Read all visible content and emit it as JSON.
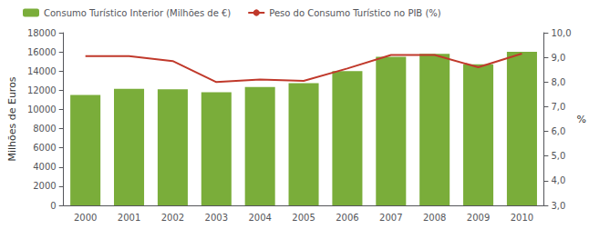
{
  "chart_data": {
    "type": "bar",
    "categories": [
      "2000",
      "2001",
      "2002",
      "2003",
      "2004",
      "2005",
      "2006",
      "2007",
      "2008",
      "2009",
      "2010"
    ],
    "series": [
      {
        "name": "Consumo Turístico Interior (Milhões de €)",
        "type": "bar",
        "color": "#7aad3a",
        "values": [
          11500,
          12150,
          12100,
          11800,
          12350,
          12750,
          14000,
          15500,
          15800,
          14700,
          16000
        ]
      },
      {
        "name": "Peso do Consumo Turístico no PIB (%)",
        "type": "line",
        "color": "#c0392b",
        "axis": "y2",
        "values": [
          9.05,
          9.05,
          8.85,
          8.0,
          8.1,
          8.05,
          8.55,
          9.1,
          9.1,
          8.6,
          9.15
        ]
      }
    ],
    "ylabel": "Milhões de Euros",
    "y2label": "%",
    "ylim": [
      0,
      18000
    ],
    "yticks": [
      0,
      2000,
      4000,
      6000,
      8000,
      10000,
      12000,
      14000,
      16000,
      18000
    ],
    "y2lim": [
      3.0,
      10.0
    ],
    "y2ticks": [
      {
        "value": 3.0,
        "label": "3,0"
      },
      {
        "value": 4.0,
        "label": "4,0"
      },
      {
        "value": 5.0,
        "label": "5,0"
      },
      {
        "value": 6.0,
        "label": "6,0"
      },
      {
        "value": 7.0,
        "label": "7,0"
      },
      {
        "value": 8.0,
        "label": "8,0"
      },
      {
        "value": 9.0,
        "label": "9,0"
      },
      {
        "value": 10.0,
        "label": "10,0"
      }
    ],
    "legend": "upper left",
    "grid": false
  }
}
